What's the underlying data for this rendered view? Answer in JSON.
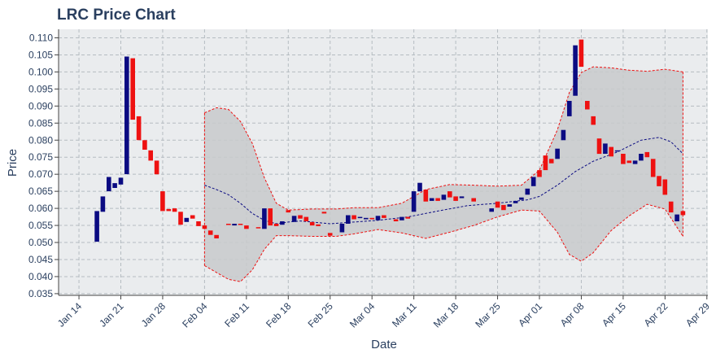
{
  "chart_data": {
    "type": "candlestick",
    "title": "LRC Price Chart",
    "xlabel": "Date",
    "ylabel": "Price",
    "x_ticks": [
      "Jan 14",
      "Jan 21",
      "Jan 28",
      "Feb 04",
      "Feb 11",
      "Feb 18",
      "Feb 25",
      "Mar 04",
      "Mar 11",
      "Mar 18",
      "Mar 25",
      "Apr 01",
      "Apr 08",
      "Apr 15",
      "Apr 22",
      "Apr 29"
    ],
    "y_ticks": [
      "0.035",
      "0.040",
      "0.045",
      "0.050",
      "0.055",
      "0.060",
      "0.065",
      "0.070",
      "0.075",
      "0.080",
      "0.085",
      "0.090",
      "0.095",
      "0.100",
      "0.105",
      "0.110"
    ],
    "ylim": [
      0.0345,
      0.1125
    ],
    "x_start": "Jan 11",
    "grid": true,
    "legend": "none",
    "colors": {
      "up": "#0b0b82",
      "down": "#ee1111",
      "sma": "#0b0b82",
      "band": "#ee1111",
      "band_fill": "#c8cacb",
      "plot_bg": "#eaecee",
      "grid": "#b5bcc1"
    },
    "candles": [
      {
        "date": "Jan 17",
        "open": 0.0502,
        "close": 0.0592
      },
      {
        "date": "Jan 18",
        "open": 0.059,
        "close": 0.0635
      },
      {
        "date": "Jan 19",
        "open": 0.065,
        "close": 0.0692
      },
      {
        "date": "Jan 20",
        "open": 0.066,
        "close": 0.0674
      },
      {
        "date": "Jan 21",
        "open": 0.067,
        "close": 0.069
      },
      {
        "date": "Jan 22",
        "open": 0.07,
        "close": 0.1045
      },
      {
        "date": "Jan 23",
        "open": 0.104,
        "close": 0.086
      },
      {
        "date": "Jan 24",
        "open": 0.087,
        "close": 0.08
      },
      {
        "date": "Jan 25",
        "open": 0.08,
        "close": 0.0772
      },
      {
        "date": "Jan 26",
        "open": 0.077,
        "close": 0.074
      },
      {
        "date": "Jan 27",
        "open": 0.074,
        "close": 0.07
      },
      {
        "date": "Jan 28",
        "open": 0.065,
        "close": 0.0592
      },
      {
        "date": "Jan 29",
        "open": 0.0598,
        "close": 0.0592
      },
      {
        "date": "Jan 30",
        "open": 0.06,
        "close": 0.059
      },
      {
        "date": "Jan 31",
        "open": 0.059,
        "close": 0.0552
      },
      {
        "date": "Feb 01",
        "open": 0.056,
        "close": 0.0572
      },
      {
        "date": "Feb 02",
        "open": 0.058,
        "close": 0.057
      },
      {
        "date": "Feb 03",
        "open": 0.0562,
        "close": 0.0548
      },
      {
        "date": "Feb 04",
        "open": 0.055,
        "close": 0.054
      },
      {
        "date": "Feb 05",
        "open": 0.0535,
        "close": 0.0522
      },
      {
        "date": "Feb 06",
        "open": 0.0522,
        "close": 0.0512
      },
      {
        "date": "Feb 08",
        "open": 0.0555,
        "close": 0.0552
      },
      {
        "date": "Feb 09",
        "open": 0.055,
        "close": 0.0555
      },
      {
        "date": "Feb 10",
        "open": 0.0555,
        "close": 0.0552
      },
      {
        "date": "Feb 11",
        "open": 0.055,
        "close": 0.054
      },
      {
        "date": "Feb 13",
        "open": 0.0545,
        "close": 0.0542
      },
      {
        "date": "Feb 14",
        "open": 0.054,
        "close": 0.06
      },
      {
        "date": "Feb 15",
        "open": 0.06,
        "close": 0.055
      },
      {
        "date": "Feb 16",
        "open": 0.0555,
        "close": 0.0548
      },
      {
        "date": "Feb 17",
        "open": 0.0552,
        "close": 0.0562
      },
      {
        "date": "Feb 18",
        "open": 0.0595,
        "close": 0.0588
      },
      {
        "date": "Feb 19",
        "open": 0.056,
        "close": 0.0578
      },
      {
        "date": "Feb 20",
        "open": 0.058,
        "close": 0.057
      },
      {
        "date": "Feb 21",
        "open": 0.0575,
        "close": 0.0562
      },
      {
        "date": "Feb 22",
        "open": 0.056,
        "close": 0.055
      },
      {
        "date": "Feb 23",
        "open": 0.0553,
        "close": 0.0548
      },
      {
        "date": "Feb 24",
        "open": 0.059,
        "close": 0.0585
      },
      {
        "date": "Feb 25",
        "open": 0.0528,
        "close": 0.052
      },
      {
        "date": "Feb 27",
        "open": 0.053,
        "close": 0.0555
      },
      {
        "date": "Feb 28",
        "open": 0.0555,
        "close": 0.058
      },
      {
        "date": "Mar 01",
        "open": 0.058,
        "close": 0.0568
      },
      {
        "date": "Mar 02",
        "open": 0.0572,
        "close": 0.0575
      },
      {
        "date": "Mar 03",
        "open": 0.0568,
        "close": 0.0572
      },
      {
        "date": "Mar 04",
        "open": 0.0572,
        "close": 0.0568
      },
      {
        "date": "Mar 05",
        "open": 0.0565,
        "close": 0.0578
      },
      {
        "date": "Mar 06",
        "open": 0.058,
        "close": 0.0572
      },
      {
        "date": "Mar 08",
        "open": 0.0568,
        "close": 0.0562
      },
      {
        "date": "Mar 09",
        "open": 0.0565,
        "close": 0.0575
      },
      {
        "date": "Mar 10",
        "open": 0.0575,
        "close": 0.057
      },
      {
        "date": "Mar 11",
        "open": 0.059,
        "close": 0.065
      },
      {
        "date": "Mar 12",
        "open": 0.065,
        "close": 0.0675
      },
      {
        "date": "Mar 13",
        "open": 0.0655,
        "close": 0.062
      },
      {
        "date": "Mar 14",
        "open": 0.0622,
        "close": 0.063
      },
      {
        "date": "Mar 15",
        "open": 0.063,
        "close": 0.0622
      },
      {
        "date": "Mar 16",
        "open": 0.0625,
        "close": 0.064
      },
      {
        "date": "Mar 17",
        "open": 0.065,
        "close": 0.0632
      },
      {
        "date": "Mar 18",
        "open": 0.0635,
        "close": 0.0622
      },
      {
        "date": "Mar 19",
        "open": 0.063,
        "close": 0.0635
      },
      {
        "date": "Mar 21",
        "open": 0.063,
        "close": 0.062
      },
      {
        "date": "Mar 24",
        "open": 0.059,
        "close": 0.06
      },
      {
        "date": "Mar 25",
        "open": 0.062,
        "close": 0.0602
      },
      {
        "date": "Mar 26",
        "open": 0.061,
        "close": 0.0595
      },
      {
        "date": "Mar 27",
        "open": 0.0605,
        "close": 0.0612
      },
      {
        "date": "Mar 28",
        "open": 0.0615,
        "close": 0.0622
      },
      {
        "date": "Mar 29",
        "open": 0.0625,
        "close": 0.0632
      },
      {
        "date": "Mar 30",
        "open": 0.064,
        "close": 0.0658
      },
      {
        "date": "Mar 31",
        "open": 0.0665,
        "close": 0.0692
      },
      {
        "date": "Apr 01",
        "open": 0.0712,
        "close": 0.0692
      },
      {
        "date": "Apr 02",
        "open": 0.0755,
        "close": 0.0712
      },
      {
        "date": "Apr 03",
        "open": 0.0745,
        "close": 0.0732
      },
      {
        "date": "Apr 04",
        "open": 0.0745,
        "close": 0.0775
      },
      {
        "date": "Apr 05",
        "open": 0.08,
        "close": 0.083
      },
      {
        "date": "Apr 06",
        "open": 0.087,
        "close": 0.0915
      },
      {
        "date": "Apr 07",
        "open": 0.093,
        "close": 0.1078
      },
      {
        "date": "Apr 08",
        "open": 0.1095,
        "close": 0.1015
      },
      {
        "date": "Apr 09",
        "open": 0.0915,
        "close": 0.089
      },
      {
        "date": "Apr 10",
        "open": 0.087,
        "close": 0.0845
      },
      {
        "date": "Apr 11",
        "open": 0.0805,
        "close": 0.076
      },
      {
        "date": "Apr 12",
        "open": 0.076,
        "close": 0.079
      },
      {
        "date": "Apr 13",
        "open": 0.078,
        "close": 0.0752
      },
      {
        "date": "Apr 14",
        "open": 0.077,
        "close": 0.077
      },
      {
        "date": "Apr 15",
        "open": 0.076,
        "close": 0.073
      },
      {
        "date": "Apr 16",
        "open": 0.074,
        "close": 0.0733
      },
      {
        "date": "Apr 17",
        "open": 0.073,
        "close": 0.074
      },
      {
        "date": "Apr 18",
        "open": 0.074,
        "close": 0.076
      },
      {
        "date": "Apr 19",
        "open": 0.0765,
        "close": 0.075
      },
      {
        "date": "Apr 20",
        "open": 0.0745,
        "close": 0.0692
      },
      {
        "date": "Apr 21",
        "open": 0.0695,
        "close": 0.0665
      },
      {
        "date": "Apr 22",
        "open": 0.0685,
        "close": 0.064
      },
      {
        "date": "Apr 23",
        "open": 0.062,
        "close": 0.0588
      },
      {
        "date": "Apr 24",
        "open": 0.0562,
        "close": 0.0582
      },
      {
        "date": "Apr 25",
        "open": 0.0592,
        "close": 0.058
      }
    ],
    "sma": [
      [
        "Feb 04",
        0.0668
      ],
      [
        "Feb 06",
        0.0655
      ],
      [
        "Feb 08",
        0.064
      ],
      [
        "Feb 10",
        0.0615
      ],
      [
        "Feb 12",
        0.0585
      ],
      [
        "Feb 14",
        0.0565
      ],
      [
        "Feb 16",
        0.0555
      ],
      [
        "Feb 18",
        0.056
      ],
      [
        "Feb 20",
        0.0563
      ],
      [
        "Feb 22",
        0.056
      ],
      [
        "Feb 25",
        0.0555
      ],
      [
        "Mar 01",
        0.056
      ],
      [
        "Mar 05",
        0.0565
      ],
      [
        "Mar 10",
        0.0575
      ],
      [
        "Mar 15",
        0.0592
      ],
      [
        "Mar 20",
        0.0608
      ],
      [
        "Mar 25",
        0.0615
      ],
      [
        "Mar 30",
        0.0625
      ],
      [
        "Apr 01",
        0.0635
      ],
      [
        "Apr 04",
        0.0668
      ],
      [
        "Apr 07",
        0.0708
      ],
      [
        "Apr 10",
        0.0738
      ],
      [
        "Apr 14",
        0.0765
      ],
      [
        "Apr 18",
        0.08
      ],
      [
        "Apr 21",
        0.0808
      ],
      [
        "Apr 23",
        0.0795
      ],
      [
        "Apr 25",
        0.076
      ]
    ],
    "band_upper": [
      [
        "Feb 04",
        0.088
      ],
      [
        "Feb 06",
        0.0895
      ],
      [
        "Feb 08",
        0.089
      ],
      [
        "Feb 10",
        0.0855
      ],
      [
        "Feb 12",
        0.079
      ],
      [
        "Feb 14",
        0.069
      ],
      [
        "Feb 16",
        0.0615
      ],
      [
        "Feb 18",
        0.0595
      ],
      [
        "Feb 22",
        0.0598
      ],
      [
        "Feb 26",
        0.0598
      ],
      [
        "Mar 01",
        0.0602
      ],
      [
        "Mar 05",
        0.0602
      ],
      [
        "Mar 09",
        0.0615
      ],
      [
        "Mar 13",
        0.0655
      ],
      [
        "Mar 17",
        0.067
      ],
      [
        "Mar 21",
        0.0668
      ],
      [
        "Mar 25",
        0.0665
      ],
      [
        "Mar 29",
        0.0668
      ],
      [
        "Apr 01",
        0.0712
      ],
      [
        "Apr 04",
        0.083
      ],
      [
        "Apr 06",
        0.094
      ],
      [
        "Apr 08",
        0.0998
      ],
      [
        "Apr 10",
        0.1015
      ],
      [
        "Apr 13",
        0.1012
      ],
      [
        "Apr 16",
        0.1005
      ],
      [
        "Apr 19",
        0.1002
      ],
      [
        "Apr 22",
        0.1008
      ],
      [
        "Apr 25",
        0.1
      ]
    ],
    "band_lower": [
      [
        "Feb 04",
        0.0432
      ],
      [
        "Feb 06",
        0.0412
      ],
      [
        "Feb 08",
        0.0392
      ],
      [
        "Feb 10",
        0.0385
      ],
      [
        "Feb 12",
        0.042
      ],
      [
        "Feb 14",
        0.048
      ],
      [
        "Feb 16",
        0.052
      ],
      [
        "Feb 18",
        0.052
      ],
      [
        "Feb 22",
        0.0518
      ],
      [
        "Feb 26",
        0.0518
      ],
      [
        "Mar 01",
        0.0525
      ],
      [
        "Mar 05",
        0.0538
      ],
      [
        "Mar 09",
        0.0528
      ],
      [
        "Mar 13",
        0.0512
      ],
      [
        "Mar 17",
        0.053
      ],
      [
        "Mar 21",
        0.055
      ],
      [
        "Mar 25",
        0.0575
      ],
      [
        "Mar 29",
        0.0595
      ],
      [
        "Apr 01",
        0.0592
      ],
      [
        "Apr 04",
        0.053
      ],
      [
        "Apr 06",
        0.0465
      ],
      [
        "Apr 08",
        0.0445
      ],
      [
        "Apr 10",
        0.047
      ],
      [
        "Apr 13",
        0.0535
      ],
      [
        "Apr 16",
        0.0578
      ],
      [
        "Apr 19",
        0.0612
      ],
      [
        "Apr 22",
        0.0598
      ],
      [
        "Apr 25",
        0.0518
      ]
    ]
  }
}
